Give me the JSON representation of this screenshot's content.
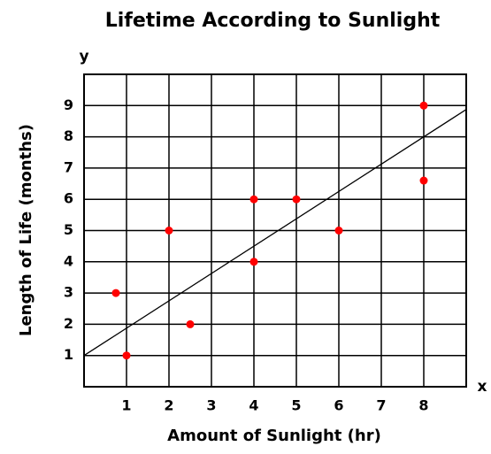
{
  "chart_data": {
    "type": "scatter",
    "title": "Lifetime According to Sunlight",
    "xlabel": "Amount of Sunlight (hr)",
    "ylabel": "Length of Life (months)",
    "x_axis_name": "x",
    "y_axis_name": "y",
    "series": [
      {
        "color": "#ff0000",
        "x": [
          0.75,
          1,
          2,
          2.5,
          4,
          4,
          5,
          6,
          8,
          8
        ],
        "values": [
          3,
          1,
          5,
          2,
          6,
          4,
          6,
          5,
          9,
          6.6
        ]
      }
    ],
    "trendline": {
      "color": "#000000",
      "x": [
        0,
        9
      ],
      "values": [
        1,
        8.875
      ]
    },
    "xlim": [
      0,
      9
    ],
    "ylim": [
      0,
      10
    ],
    "xticks": [
      1,
      2,
      3,
      4,
      5,
      6,
      7,
      8
    ],
    "yticks": [
      1,
      2,
      3,
      4,
      5,
      6,
      7,
      8,
      9
    ],
    "grid": true
  }
}
